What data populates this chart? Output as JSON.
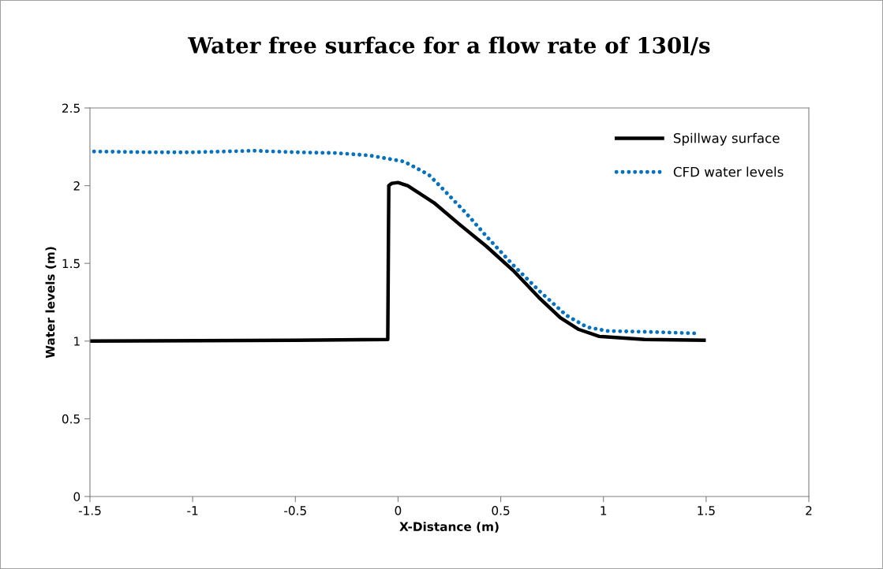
{
  "chart_data": {
    "type": "line",
    "title": "Water free surface for a flow rate of 130l/s",
    "xlabel": "X-Distance (m)",
    "ylabel": "Water levels (m)",
    "xlim": [
      -1.5,
      2
    ],
    "xticks": [
      -1.5,
      -1,
      -0.5,
      0,
      0.5,
      1,
      1.5,
      2
    ],
    "ylim": [
      0,
      2.5
    ],
    "yticks": [
      0,
      0.5,
      1,
      1.5,
      2,
      2.5
    ],
    "grid": false,
    "legend": "top right",
    "series": [
      {
        "name": "Spillway surface",
        "color": "#000000",
        "line_style": "solid",
        "x": [
          -1.5,
          -0.5,
          -0.05,
          -0.045,
          -0.03,
          0.0,
          0.047,
          0.175,
          0.3,
          0.43,
          0.56,
          0.686,
          0.79,
          0.88,
          0.98,
          1.2,
          1.49
        ],
        "values": [
          1.0,
          1.005,
          1.01,
          2.0,
          2.015,
          2.02,
          2.0,
          1.89,
          1.75,
          1.61,
          1.455,
          1.28,
          1.15,
          1.075,
          1.03,
          1.01,
          1.005
        ]
      },
      {
        "name": "CFD water levels",
        "color": "#0070c0",
        "line_style": "dotted",
        "x": [
          -1.48,
          -1.2,
          -1.0,
          -0.7,
          -0.5,
          -0.3,
          -0.14,
          0.03,
          0.15,
          0.21,
          0.33,
          0.44,
          0.56,
          0.69,
          0.82,
          0.92,
          1.02,
          1.2,
          1.455
        ],
        "values": [
          2.22,
          2.215,
          2.215,
          2.225,
          2.215,
          2.21,
          2.195,
          2.155,
          2.07,
          1.99,
          1.825,
          1.66,
          1.49,
          1.32,
          1.165,
          1.09,
          1.065,
          1.06,
          1.05
        ]
      }
    ]
  }
}
